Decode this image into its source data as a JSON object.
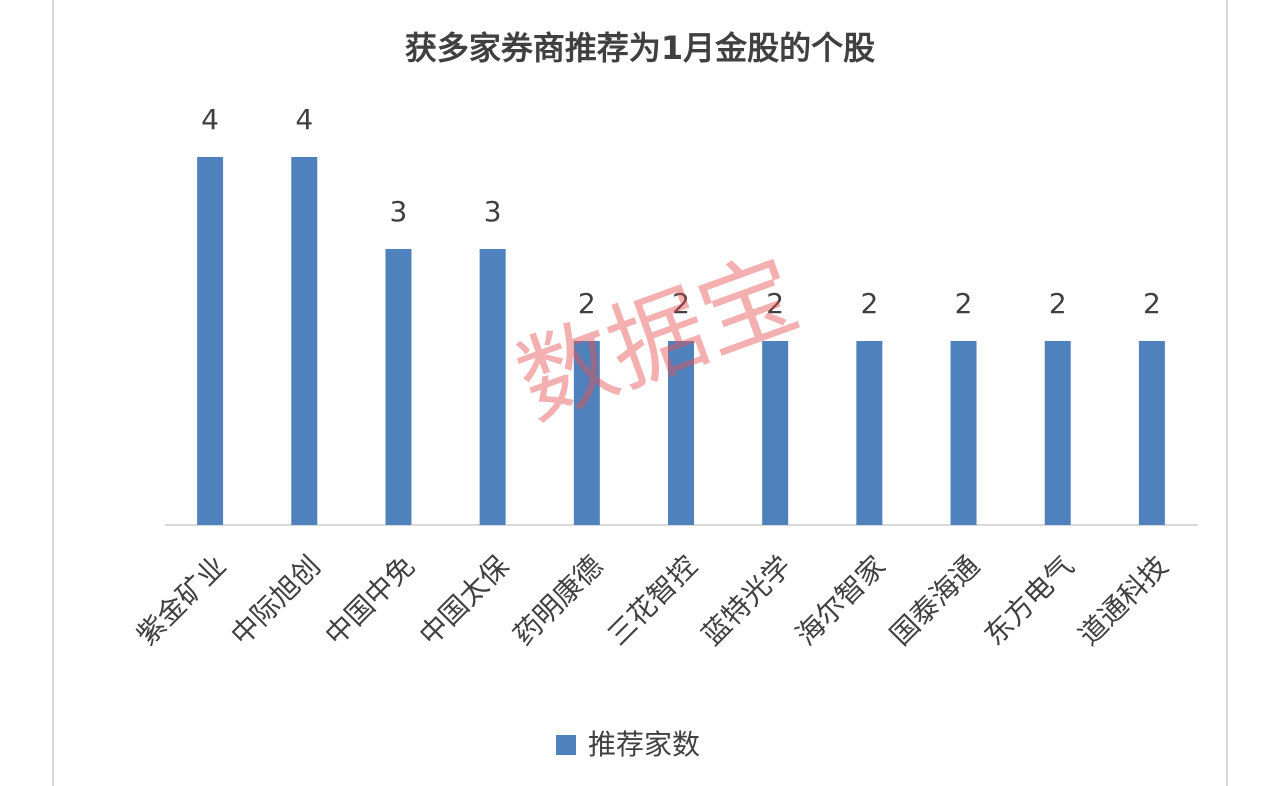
{
  "chart_data": {
    "type": "bar",
    "title": "获多家券商推荐为1月金股的个股",
    "categories": [
      "紫金矿业",
      "中际旭创",
      "中国中免",
      "中国太保",
      "药明康德",
      "三花智控",
      "蓝特光学",
      "海尔智家",
      "国泰海通",
      "东方电气",
      "道通科技"
    ],
    "series": [
      {
        "name": "推荐家数",
        "color": "#4f81bd",
        "values": [
          4,
          4,
          3,
          3,
          2,
          2,
          2,
          2,
          2,
          2,
          2
        ]
      }
    ],
    "legend": "bottom",
    "watermark": "数据宝"
  }
}
